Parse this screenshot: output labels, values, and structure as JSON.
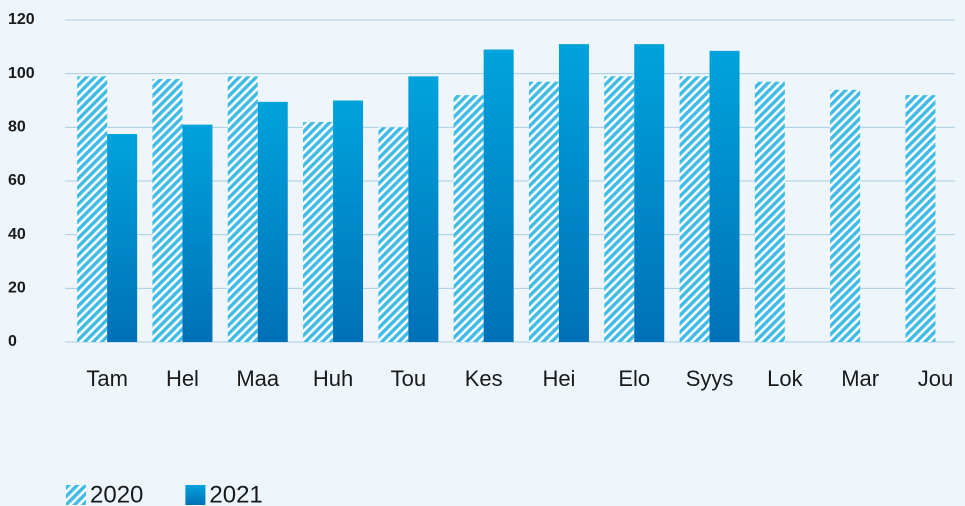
{
  "chart_data": {
    "type": "bar",
    "categories": [
      "Tam",
      "Hel",
      "Maa",
      "Huh",
      "Tou",
      "Kes",
      "Hei",
      "Elo",
      "Syys",
      "Lok",
      "Mar",
      "Jou"
    ],
    "series": [
      {
        "name": "2020",
        "color": "#3fbbe6",
        "fill": "hatch",
        "values": [
          99,
          98,
          99,
          82,
          80,
          92,
          97,
          99,
          99,
          97,
          94,
          92
        ]
      },
      {
        "name": "2021",
        "color": "#00a3dc",
        "fill": "gradient",
        "values": [
          77.5,
          81,
          89.5,
          90,
          99,
          109,
          111,
          111,
          108.5,
          null,
          null,
          null
        ]
      }
    ],
    "ylim": [
      0,
      120
    ],
    "yticks": [
      0,
      20,
      40,
      60,
      80,
      100,
      120
    ],
    "grid": true,
    "legend": "bottom-left"
  }
}
